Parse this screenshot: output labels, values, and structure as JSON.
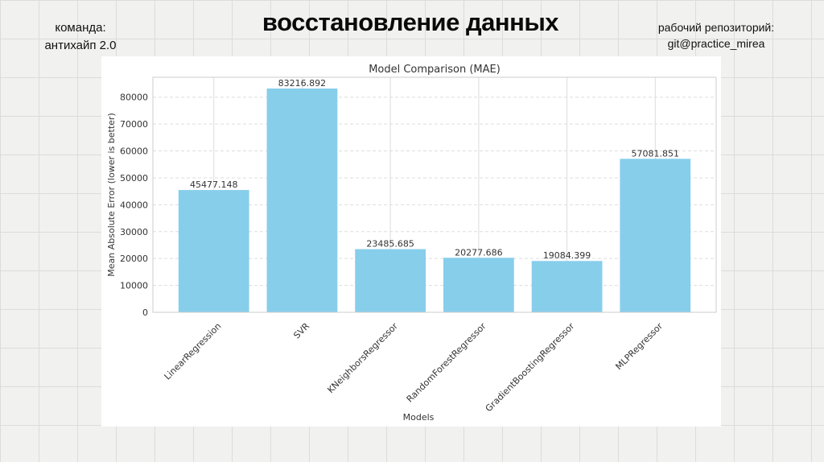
{
  "header": {
    "team_label": "команда:",
    "team_name": "антихайп 2.0",
    "title": "восстановление данных",
    "repo_label": "рабочий репозиторий:",
    "repo_name": "git@practice_mirea"
  },
  "chart_data": {
    "type": "bar",
    "title": "Model Comparison (MAE)",
    "xlabel": "Models",
    "ylabel": "Mean Absolute Error (lower is better)",
    "categories": [
      "LinearRegression",
      "SVR",
      "KNeighborsRegressor",
      "RandomForestRegressor",
      "GradientBoostingRegressor",
      "MLPRegressor"
    ],
    "values": [
      45477.148,
      83216.892,
      23485.685,
      20277.686,
      19084.399,
      57081.851
    ],
    "data_labels": [
      "45477.148",
      "83216.892",
      "23485.685",
      "20277.686",
      "19084.399",
      "57081.851"
    ],
    "yticks": [
      0,
      10000,
      20000,
      30000,
      40000,
      50000,
      60000,
      70000,
      80000
    ],
    "ylim": [
      0,
      87400
    ],
    "grid": true,
    "bar_color": "#87ceeb"
  }
}
